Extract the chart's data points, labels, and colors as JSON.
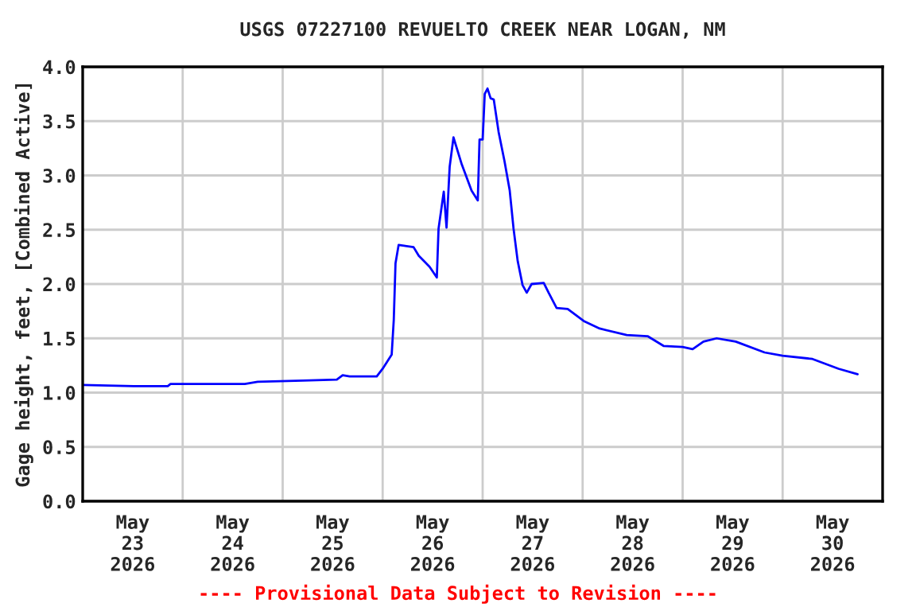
{
  "chart_data": {
    "type": "line",
    "title": "USGS 07227100 REVUELTO CREEK NEAR LOGAN, NM",
    "ylabel": "Gage height, feet, [Combined Active]",
    "annotations": [
      "---- Provisional Data Subject to Revision ----"
    ],
    "x": [
      "2026-05-23T00:00",
      "2026-05-23T12:15",
      "2026-05-23T20:25",
      "2026-05-23T21:05",
      "2026-05-24T04:50",
      "2026-05-24T14:55",
      "2026-05-24T18:00",
      "2026-05-25T04:50",
      "2026-05-25T13:00",
      "2026-05-25T14:24",
      "2026-05-25T16:05",
      "2026-05-25T22:35",
      "2026-05-26T00:00",
      "2026-05-26T02:10",
      "2026-05-26T02:40",
      "2026-05-26T03:05",
      "2026-05-26T03:50",
      "2026-05-26T07:25",
      "2026-05-26T08:40",
      "2026-05-26T11:15",
      "2026-05-26T13:00",
      "2026-05-26T13:25",
      "2026-05-26T14:40",
      "2026-05-26T15:20",
      "2026-05-26T16:05",
      "2026-05-26T17:00",
      "2026-05-26T19:00",
      "2026-05-26T21:20",
      "2026-05-26T22:50",
      "2026-05-26T23:15",
      "2026-05-27T00:00",
      "2026-05-27T00:30",
      "2026-05-27T01:10",
      "2026-05-27T01:55",
      "2026-05-27T02:40",
      "2026-05-27T03:50",
      "2026-05-27T05:15",
      "2026-05-27T06:30",
      "2026-05-27T07:25",
      "2026-05-27T08:25",
      "2026-05-27T09:35",
      "2026-05-27T10:35",
      "2026-05-27T11:45",
      "2026-05-27T14:40",
      "2026-05-27T15:50",
      "2026-05-27T17:45",
      "2026-05-27T20:25",
      "2026-05-28T00:15",
      "2026-05-28T04:05",
      "2026-05-28T10:35",
      "2026-05-28T15:35",
      "2026-05-28T19:25",
      "2026-05-29T00:00",
      "2026-05-29T02:24",
      "2026-05-29T05:00",
      "2026-05-29T08:10",
      "2026-05-29T12:45",
      "2026-05-29T19:40",
      "2026-05-30T00:00",
      "2026-05-30T07:10",
      "2026-05-30T13:25",
      "2026-05-30T18:00"
    ],
    "series": [
      {
        "color": "#0000ff",
        "values": [
          1.07,
          1.06,
          1.06,
          1.08,
          1.08,
          1.08,
          1.1,
          1.11,
          1.12,
          1.16,
          1.15,
          1.15,
          1.22,
          1.35,
          1.67,
          2.19,
          2.36,
          2.34,
          2.26,
          2.16,
          2.06,
          2.51,
          2.85,
          2.52,
          3.08,
          3.35,
          3.1,
          2.86,
          2.77,
          3.33,
          3.33,
          3.75,
          3.8,
          3.71,
          3.7,
          3.4,
          3.13,
          2.86,
          2.51,
          2.21,
          1.99,
          1.92,
          2.0,
          2.01,
          1.92,
          1.78,
          1.77,
          1.66,
          1.59,
          1.53,
          1.52,
          1.43,
          1.42,
          1.4,
          1.47,
          1.5,
          1.47,
          1.37,
          1.34,
          1.31,
          1.22,
          1.17
        ]
      }
    ],
    "xlim": [
      "2026-05-23T00:00",
      "2026-05-31T00:00"
    ],
    "xticks": [
      {
        "value": "2026-05-23T12:00",
        "label": "May\n23\n2026"
      },
      {
        "value": "2026-05-24T12:00",
        "label": "May\n24\n2026"
      },
      {
        "value": "2026-05-25T12:00",
        "label": "May\n25\n2026"
      },
      {
        "value": "2026-05-26T12:00",
        "label": "May\n26\n2026"
      },
      {
        "value": "2026-05-27T12:00",
        "label": "May\n27\n2026"
      },
      {
        "value": "2026-05-28T12:00",
        "label": "May\n28\n2026"
      },
      {
        "value": "2026-05-29T12:00",
        "label": "May\n29\n2026"
      },
      {
        "value": "2026-05-30T12:00",
        "label": "May\n30\n2026"
      },
      {
        "value": "2026-05-24T00:00",
        "label": null
      },
      {
        "value": "2026-05-25T00:00",
        "label": null
      },
      {
        "value": "2026-05-26T00:00",
        "label": null
      },
      {
        "value": "2026-05-27T00:00",
        "label": null
      },
      {
        "value": "2026-05-28T00:00",
        "label": null
      },
      {
        "value": "2026-05-29T00:00",
        "label": null
      },
      {
        "value": "2026-05-30T00:00",
        "label": null
      }
    ],
    "ylim": [
      0,
      4.0
    ],
    "yticks": [
      {
        "value": 0,
        "label": "0.0"
      },
      {
        "value": 0.5,
        "label": "0.5"
      },
      {
        "value": 1.0,
        "label": "1.0"
      },
      {
        "value": 1.5,
        "label": "1.5"
      },
      {
        "value": 2.0,
        "label": "2.0"
      },
      {
        "value": 2.5,
        "label": "2.5"
      },
      {
        "value": 3.0,
        "label": "3.0"
      },
      {
        "value": 3.5,
        "label": "3.5"
      },
      {
        "value": 4.0,
        "label": "4.0"
      }
    ],
    "grid": true
  }
}
